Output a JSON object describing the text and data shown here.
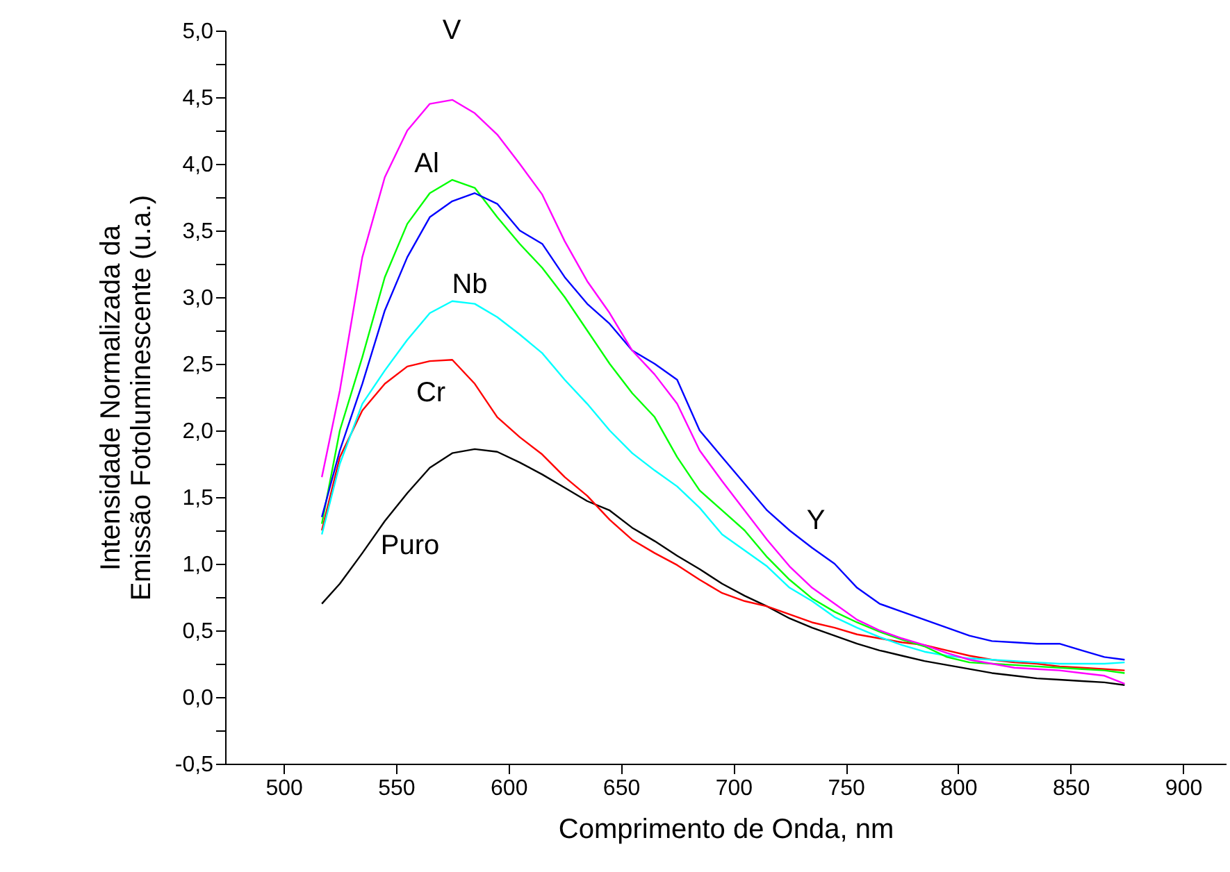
{
  "chart_data": {
    "type": "line",
    "xlabel": "Comprimento de Onda, nm",
    "ylabel": "Intensidade Normalizada da\nEmissão Fotoluminescente (u.a.)",
    "xlim": [
      474,
      919
    ],
    "xticks": [
      500,
      550,
      600,
      650,
      700,
      750,
      800,
      850,
      900
    ],
    "ylim": [
      -0.5,
      5.0
    ],
    "yticks": [
      {
        "value": -0.5,
        "label": "-0,5"
      },
      {
        "value": -0.25,
        "label": null
      },
      {
        "value": 0,
        "label": "0,0"
      },
      {
        "value": 0.25,
        "label": null
      },
      {
        "value": 0.5,
        "label": "0,5"
      },
      {
        "value": 0.75,
        "label": null
      },
      {
        "value": 1,
        "label": "1,0"
      },
      {
        "value": 1.25,
        "label": null
      },
      {
        "value": 1.5,
        "label": "1,5"
      },
      {
        "value": 1.75,
        "label": null
      },
      {
        "value": 2,
        "label": "2,0"
      },
      {
        "value": 2.25,
        "label": null
      },
      {
        "value": 2.5,
        "label": "2,5"
      },
      {
        "value": 2.75,
        "label": null
      },
      {
        "value": 3,
        "label": "3,0"
      },
      {
        "value": 3.25,
        "label": null
      },
      {
        "value": 3.5,
        "label": "3,5"
      },
      {
        "value": 3.75,
        "label": null
      },
      {
        "value": 4,
        "label": "4,0"
      },
      {
        "value": 4.25,
        "label": null
      },
      {
        "value": 4.5,
        "label": "4,5"
      },
      {
        "value": 4.75,
        "label": null
      },
      {
        "value": 5,
        "label": "5,0"
      }
    ],
    "x": [
      517,
      525,
      535,
      545,
      555,
      565,
      575,
      585,
      595,
      605,
      615,
      625,
      635,
      645,
      655,
      665,
      675,
      685,
      695,
      705,
      715,
      725,
      735,
      745,
      755,
      765,
      775,
      785,
      795,
      805,
      815,
      825,
      835,
      845,
      855,
      865,
      874
    ],
    "series": [
      {
        "name": "Puro",
        "color": "#000000",
        "values": [
          0.7,
          0.85,
          1.08,
          1.32,
          1.53,
          1.72,
          1.83,
          1.86,
          1.84,
          1.76,
          1.67,
          1.57,
          1.47,
          1.4,
          1.27,
          1.17,
          1.06,
          0.96,
          0.85,
          0.76,
          0.68,
          0.59,
          0.52,
          0.46,
          0.4,
          0.35,
          0.31,
          0.27,
          0.24,
          0.21,
          0.18,
          0.16,
          0.14,
          0.13,
          0.12,
          0.11,
          0.09
        ]
      },
      {
        "name": "Cr",
        "color": "#ff0000",
        "values": [
          1.25,
          1.8,
          2.15,
          2.35,
          2.48,
          2.52,
          2.53,
          2.35,
          2.1,
          1.95,
          1.82,
          1.65,
          1.51,
          1.33,
          1.18,
          1.08,
          0.99,
          0.88,
          0.78,
          0.72,
          0.68,
          0.62,
          0.56,
          0.52,
          0.47,
          0.44,
          0.41,
          0.39,
          0.35,
          0.31,
          0.28,
          0.26,
          0.25,
          0.23,
          0.22,
          0.21,
          0.2
        ]
      },
      {
        "name": "Nb",
        "color": "#00ffff",
        "values": [
          1.22,
          1.75,
          2.2,
          2.45,
          2.68,
          2.88,
          2.97,
          2.95,
          2.85,
          2.72,
          2.58,
          2.38,
          2.2,
          2.0,
          1.83,
          1.7,
          1.58,
          1.42,
          1.22,
          1.1,
          0.98,
          0.82,
          0.72,
          0.6,
          0.52,
          0.45,
          0.39,
          0.34,
          0.31,
          0.29,
          0.28,
          0.27,
          0.26,
          0.25,
          0.25,
          0.25,
          0.26
        ]
      },
      {
        "name": "Al",
        "color": "#00ff00",
        "values": [
          1.3,
          2.0,
          2.55,
          3.15,
          3.55,
          3.78,
          3.88,
          3.82,
          3.6,
          3.4,
          3.22,
          3.0,
          2.75,
          2.5,
          2.28,
          2.1,
          1.8,
          1.55,
          1.4,
          1.25,
          1.05,
          0.88,
          0.74,
          0.64,
          0.56,
          0.49,
          0.43,
          0.38,
          0.3,
          0.26,
          0.25,
          0.24,
          0.23,
          0.22,
          0.21,
          0.2,
          0.18
        ]
      },
      {
        "name": "Y",
        "color": "#0000ff",
        "values": [
          1.35,
          1.85,
          2.35,
          2.9,
          3.3,
          3.6,
          3.72,
          3.78,
          3.7,
          3.5,
          3.4,
          3.15,
          2.95,
          2.8,
          2.6,
          2.5,
          2.38,
          2.0,
          1.8,
          1.6,
          1.4,
          1.25,
          1.12,
          1.0,
          0.82,
          0.7,
          0.64,
          0.58,
          0.52,
          0.46,
          0.42,
          0.41,
          0.4,
          0.4,
          0.35,
          0.3,
          0.28
        ]
      },
      {
        "name": "V",
        "color": "#ff00ff",
        "values": [
          1.65,
          2.3,
          3.3,
          3.9,
          4.25,
          4.45,
          4.48,
          4.38,
          4.22,
          4.0,
          3.77,
          3.42,
          3.12,
          2.88,
          2.6,
          2.42,
          2.2,
          1.85,
          1.62,
          1.4,
          1.18,
          0.98,
          0.82,
          0.7,
          0.58,
          0.5,
          0.44,
          0.39,
          0.33,
          0.28,
          0.25,
          0.22,
          0.21,
          0.2,
          0.18,
          0.16,
          0.1
        ]
      }
    ]
  }
}
